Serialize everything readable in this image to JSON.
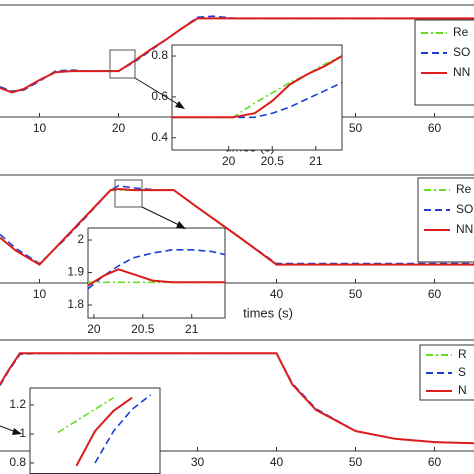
{
  "chart_data": [
    {
      "type": "line",
      "x_label": "times (s)",
      "xlim": [
        5,
        65
      ],
      "ylim": [
        0,
        1
      ],
      "xticks": [
        10,
        20,
        50,
        60
      ],
      "legend": "upper right",
      "x": [
        5,
        6.5,
        8,
        10,
        12,
        14,
        16,
        18,
        20,
        22,
        24,
        26,
        28,
        30,
        32,
        35,
        40,
        50,
        60,
        65
      ],
      "series": [
        {
          "name": "Re",
          "color": "#66dd22",
          "line_style": "dashdot",
          "values": [
            0.26,
            0.22,
            0.25,
            0.33,
            0.4,
            0.41,
            0.41,
            0.41,
            0.41,
            0.5,
            0.6,
            0.69,
            0.79,
            0.88,
            0.88,
            0.88,
            0.88,
            0.88,
            0.88,
            0.88
          ]
        },
        {
          "name": "SO",
          "color": "#1a3fd6",
          "line_style": "dashed",
          "values": [
            0.27,
            0.23,
            0.24,
            0.32,
            0.41,
            0.42,
            0.41,
            0.41,
            0.41,
            0.49,
            0.59,
            0.69,
            0.79,
            0.89,
            0.9,
            0.88,
            0.88,
            0.88,
            0.88,
            0.88
          ]
        },
        {
          "name": "NN",
          "color": "#dd1c1c",
          "line_style": "solid",
          "values": [
            0.26,
            0.22,
            0.25,
            0.33,
            0.4,
            0.41,
            0.41,
            0.41,
            0.41,
            0.5,
            0.6,
            0.69,
            0.79,
            0.88,
            0.88,
            0.88,
            0.88,
            0.88,
            0.88,
            0.88
          ]
        }
      ]
    },
    {
      "type": "line",
      "xlim": [
        19.35,
        21.3
      ],
      "ylim": [
        0.34,
        0.854
      ],
      "xticks": [
        20,
        20.5,
        21
      ],
      "yticks": [
        0.4,
        0.6,
        0.8
      ],
      "x": [
        19.35,
        19.8,
        20.05,
        20.3,
        20.5,
        20.7,
        20.9,
        21.1,
        21.3
      ],
      "series": [
        {
          "color": "#66dd22",
          "line_style": "dashdot",
          "values": [
            0.5,
            0.5,
            0.5,
            0.57,
            0.62,
            0.67,
            0.71,
            0.76,
            0.8
          ]
        },
        {
          "color": "#1a3fd6",
          "line_style": "dashed",
          "values": [
            0.5,
            0.5,
            0.5,
            0.5,
            0.52,
            0.55,
            0.59,
            0.63,
            0.67
          ]
        },
        {
          "color": "#dd1c1c",
          "line_style": "solid",
          "values": [
            0.5,
            0.5,
            0.5,
            0.52,
            0.58,
            0.66,
            0.71,
            0.75,
            0.8
          ]
        }
      ]
    },
    {
      "type": "line",
      "x_label": "times (s)",
      "xlim": [
        5,
        65
      ],
      "ylim": [
        0,
        1
      ],
      "xticks": [
        10,
        40,
        50,
        60
      ],
      "legend": "upper right",
      "x": [
        5,
        7,
        10,
        13,
        16,
        19,
        20,
        22,
        25,
        27,
        30,
        35,
        40,
        45,
        55,
        65
      ],
      "series": [
        {
          "name": "Re",
          "color": "#66dd22",
          "line_style": "dashdot",
          "values": [
            0.42,
            0.3,
            0.17,
            0.4,
            0.63,
            0.86,
            0.86,
            0.86,
            0.86,
            0.86,
            0.7,
            0.44,
            0.17,
            0.17,
            0.17,
            0.17
          ]
        },
        {
          "name": "SO",
          "color": "#1a3fd6",
          "line_style": "dashed",
          "values": [
            0.45,
            0.32,
            0.18,
            0.39,
            0.62,
            0.86,
            0.9,
            0.88,
            0.86,
            0.86,
            0.7,
            0.44,
            0.18,
            0.18,
            0.18,
            0.18
          ]
        },
        {
          "name": "NN",
          "color": "#dd1c1c",
          "line_style": "solid",
          "values": [
            0.42,
            0.3,
            0.17,
            0.4,
            0.63,
            0.86,
            0.87,
            0.86,
            0.86,
            0.86,
            0.7,
            0.44,
            0.17,
            0.17,
            0.17,
            0.17
          ]
        }
      ]
    },
    {
      "type": "line",
      "xlim": [
        19.94,
        21.34
      ],
      "ylim": [
        1.76,
        2.037
      ],
      "xticks": [
        20,
        20.5,
        21
      ],
      "yticks": [
        1.8,
        1.9,
        2
      ],
      "x": [
        19.94,
        20.1,
        20.25,
        20.4,
        20.6,
        20.8,
        21,
        21.2,
        21.34
      ],
      "series": [
        {
          "color": "#66dd22",
          "line_style": "dashdot",
          "values": [
            1.87,
            1.87,
            1.87,
            1.87,
            1.87,
            1.87,
            1.87,
            1.87,
            1.87
          ]
        },
        {
          "color": "#1a3fd6",
          "line_style": "dashed",
          "values": [
            1.85,
            1.89,
            1.92,
            1.945,
            1.96,
            1.97,
            1.97,
            1.965,
            1.955
          ]
        },
        {
          "color": "#dd1c1c",
          "line_style": "solid",
          "values": [
            1.86,
            1.89,
            1.91,
            1.895,
            1.875,
            1.87,
            1.87,
            1.87,
            1.87
          ]
        }
      ]
    },
    {
      "type": "line",
      "xlim": [
        5,
        65
      ],
      "ylim": [
        0,
        1
      ],
      "xticks": [
        30,
        40,
        50,
        60
      ],
      "legend": "upper right",
      "x": [
        5,
        6,
        7.5,
        10,
        20,
        30,
        40,
        42,
        45,
        50,
        55,
        60,
        65
      ],
      "series": [
        {
          "name": "R",
          "color": "#66dd22",
          "line_style": "dashdot",
          "values": [
            0.6,
            0.72,
            0.88,
            0.88,
            0.88,
            0.88,
            0.88,
            0.6,
            0.37,
            0.18,
            0.11,
            0.08,
            0.07
          ]
        },
        {
          "name": "S",
          "color": "#1a3fd6",
          "line_style": "dashed",
          "values": [
            0.59,
            0.71,
            0.87,
            0.88,
            0.88,
            0.88,
            0.88,
            0.61,
            0.38,
            0.18,
            0.11,
            0.08,
            0.07
          ]
        },
        {
          "name": "N",
          "color": "#dd1c1c",
          "line_style": "solid",
          "values": [
            0.6,
            0.72,
            0.88,
            0.88,
            0.88,
            0.88,
            0.88,
            0.6,
            0.37,
            0.18,
            0.11,
            0.08,
            0.07
          ]
        }
      ]
    },
    {
      "type": "line",
      "xlim": [
        6.9,
        7.6
      ],
      "ylim": [
        0.724,
        1.317
      ],
      "yticks": [
        0.8,
        1,
        1.2
      ],
      "x": [
        7.05,
        7.15,
        7.25,
        7.35,
        7.45,
        7.55
      ],
      "series": [
        {
          "color": "#66dd22",
          "line_style": "dashdot",
          "values": [
            1.01,
            1.09,
            1.17,
            1.25,
            null,
            null
          ]
        },
        {
          "color": "#1a3fd6",
          "line_style": "dashed",
          "values": [
            null,
            null,
            0.8,
            1.02,
            1.17,
            1.27
          ]
        },
        {
          "color": "#dd1c1c",
          "line_style": "solid",
          "values": [
            null,
            0.78,
            1.02,
            1.16,
            1.25,
            null
          ]
        }
      ]
    }
  ]
}
